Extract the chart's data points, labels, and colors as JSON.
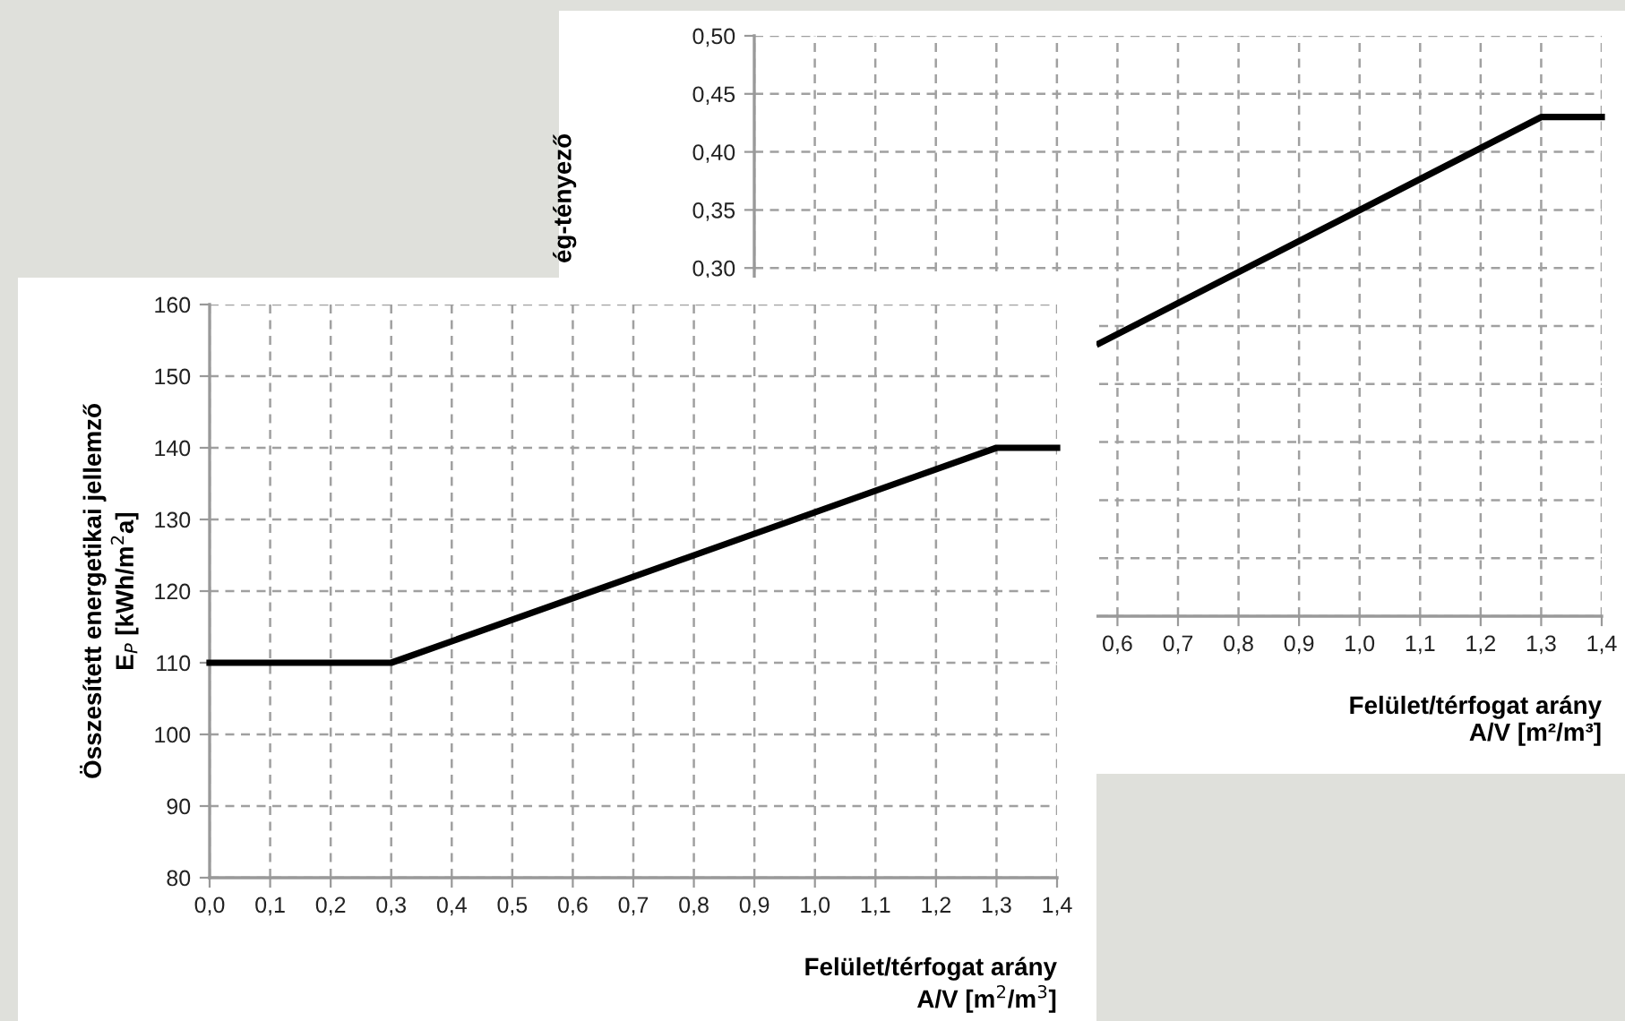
{
  "chart_data": [
    {
      "type": "line",
      "ylabel": "ég-tényező",
      "xlabel": "Felület/térfogat arány\nA/V [m²/m³]",
      "x": [
        0.57,
        1.3,
        1.4
      ],
      "series": [
        {
          "color": "#000000",
          "values": [
            0.235,
            0.43,
            0.43
          ]
        }
      ],
      "xlim": [
        0,
        1.4
      ],
      "ylim": [
        0,
        0.5
      ],
      "xticks": [
        {
          "value": 0.0,
          "label": null
        },
        {
          "value": 0.1,
          "label": null
        },
        {
          "value": 0.2,
          "label": null
        },
        {
          "value": 0.3,
          "label": null
        },
        {
          "value": 0.4,
          "label": null
        },
        {
          "value": 0.5,
          "label": null
        },
        {
          "value": 0.6,
          "label": "0,6"
        },
        {
          "value": 0.7,
          "label": "0,7"
        },
        {
          "value": 0.8,
          "label": "0,8"
        },
        {
          "value": 0.9,
          "label": "0,9"
        },
        {
          "value": 1.0,
          "label": "1,0"
        },
        {
          "value": 1.1,
          "label": "1,1"
        },
        {
          "value": 1.2,
          "label": "1,2"
        },
        {
          "value": 1.3,
          "label": "1,3"
        },
        {
          "value": 1.4,
          "label": "1,4"
        }
      ],
      "yticks": [
        {
          "value": 0.0,
          "label": null
        },
        {
          "value": 0.05,
          "label": null
        },
        {
          "value": 0.1,
          "label": null
        },
        {
          "value": 0.15,
          "label": null
        },
        {
          "value": 0.2,
          "label": null
        },
        {
          "value": 0.25,
          "label": null
        },
        {
          "value": 0.3,
          "label": "0,30"
        },
        {
          "value": 0.35,
          "label": "0,35"
        },
        {
          "value": 0.4,
          "label": "0,40"
        },
        {
          "value": 0.45,
          "label": "0,45"
        },
        {
          "value": 0.5,
          "label": "0,50"
        }
      ],
      "grid": true,
      "legend": false,
      "marker": "none",
      "line_style": "solid"
    },
    {
      "type": "line",
      "ylabel": "Összesített energetikai jellemző\nE$_{P}$ [kWh/m$^{2}$a]",
      "xlabel": "Felület/térfogat arány\nA/V [m$^{2}$/m$^{3}$]",
      "x": [
        0.0,
        0.3,
        1.3,
        1.4
      ],
      "series": [
        {
          "color": "#000000",
          "values": [
            110,
            110,
            140,
            140
          ]
        }
      ],
      "xlim": [
        0,
        1.4
      ],
      "ylim": [
        80,
        160
      ],
      "xticks": [
        {
          "value": 0.0,
          "label": "0,0"
        },
        {
          "value": 0.1,
          "label": "0,1"
        },
        {
          "value": 0.2,
          "label": "0,2"
        },
        {
          "value": 0.3,
          "label": "0,3"
        },
        {
          "value": 0.4,
          "label": "0,4"
        },
        {
          "value": 0.5,
          "label": "0,5"
        },
        {
          "value": 0.6,
          "label": "0,6"
        },
        {
          "value": 0.7,
          "label": "0,7"
        },
        {
          "value": 0.8,
          "label": "0,8"
        },
        {
          "value": 0.9,
          "label": "0,9"
        },
        {
          "value": 1.0,
          "label": "1,0"
        },
        {
          "value": 1.1,
          "label": "1,1"
        },
        {
          "value": 1.2,
          "label": "1,2"
        },
        {
          "value": 1.3,
          "label": "1,3"
        },
        {
          "value": 1.4,
          "label": "1,4"
        }
      ],
      "yticks": [
        80,
        90,
        100,
        110,
        120,
        130,
        140,
        150,
        160
      ],
      "grid": true,
      "legend": false,
      "marker": "none",
      "line_style": "solid"
    }
  ]
}
